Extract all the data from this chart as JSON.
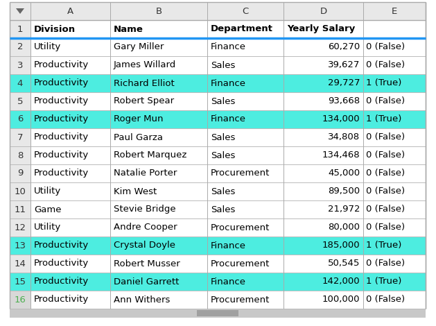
{
  "col_letters": [
    "",
    "A",
    "B",
    "C",
    "D",
    "E"
  ],
  "header_labels": [
    "Division",
    "Name",
    "Department",
    "Yearly Salary",
    ""
  ],
  "rows": [
    {
      "row_num": 1,
      "division": "Division",
      "name": "Name",
      "department": "Department",
      "salary": "Yearly Salary",
      "flag": "",
      "highlight": false,
      "is_header": true
    },
    {
      "row_num": 2,
      "division": "Utility",
      "name": "Gary Miller",
      "department": "Finance",
      "salary": "60,270",
      "flag": "0 (False)",
      "highlight": false,
      "is_header": false
    },
    {
      "row_num": 3,
      "division": "Productivity",
      "name": "James Willard",
      "department": "Sales",
      "salary": "39,627",
      "flag": "0 (False)",
      "highlight": false,
      "is_header": false
    },
    {
      "row_num": 4,
      "division": "Productivity",
      "name": "Richard Elliot",
      "department": "Finance",
      "salary": "29,727",
      "flag": "1 (True)",
      "highlight": true,
      "is_header": false
    },
    {
      "row_num": 5,
      "division": "Productivity",
      "name": "Robert Spear",
      "department": "Sales",
      "salary": "93,668",
      "flag": "0 (False)",
      "highlight": false,
      "is_header": false
    },
    {
      "row_num": 6,
      "division": "Productivity",
      "name": "Roger Mun",
      "department": "Finance",
      "salary": "134,000",
      "flag": "1 (True)",
      "highlight": true,
      "is_header": false
    },
    {
      "row_num": 7,
      "division": "Productivity",
      "name": "Paul Garza",
      "department": "Sales",
      "salary": "34,808",
      "flag": "0 (False)",
      "highlight": false,
      "is_header": false
    },
    {
      "row_num": 8,
      "division": "Productivity",
      "name": "Robert Marquez",
      "department": "Sales",
      "salary": "134,468",
      "flag": "0 (False)",
      "highlight": false,
      "is_header": false
    },
    {
      "row_num": 9,
      "division": "Productivity",
      "name": "Natalie Porter",
      "department": "Procurement",
      "salary": "45,000",
      "flag": "0 (False)",
      "highlight": false,
      "is_header": false
    },
    {
      "row_num": 10,
      "division": "Utility",
      "name": "Kim West",
      "department": "Sales",
      "salary": "89,500",
      "flag": "0 (False)",
      "highlight": false,
      "is_header": false
    },
    {
      "row_num": 11,
      "division": "Game",
      "name": "Stevie Bridge",
      "department": "Sales",
      "salary": "21,972",
      "flag": "0 (False)",
      "highlight": false,
      "is_header": false
    },
    {
      "row_num": 12,
      "division": "Utility",
      "name": "Andre Cooper",
      "department": "Procurement",
      "salary": "80,000",
      "flag": "0 (False)",
      "highlight": false,
      "is_header": false
    },
    {
      "row_num": 13,
      "division": "Productivity",
      "name": "Crystal Doyle",
      "department": "Finance",
      "salary": "185,000",
      "flag": "1 (True)",
      "highlight": true,
      "is_header": false
    },
    {
      "row_num": 14,
      "division": "Productivity",
      "name": "Robert Musser",
      "department": "Procurement",
      "salary": "50,545",
      "flag": "0 (False)",
      "highlight": false,
      "is_header": false
    },
    {
      "row_num": 15,
      "division": "Productivity",
      "name": "Daniel Garrett",
      "department": "Finance",
      "salary": "142,000",
      "flag": "1 (True)",
      "highlight": true,
      "is_header": false
    },
    {
      "row_num": 16,
      "division": "Productivity",
      "name": "Ann Withers",
      "department": "Procurement",
      "salary": "100,000",
      "flag": "0 (False)",
      "highlight": false,
      "is_header": false
    }
  ],
  "highlight_color": "#4DEDE0",
  "col_header_bg": "#E8E8E8",
  "row_num_bg": "#E8E8E8",
  "row_num_bg_last": "#D8D8D8",
  "white_bg": "#FFFFFF",
  "grid_color": "#BBBBBB",
  "header_border_color": "#2196F3",
  "col_header_border_color": "#AAAAAA",
  "font_size": 9.5,
  "header_font_size": 9.5,
  "col_letter_font_size": 9.5,
  "row_num_font_size": 9.5,
  "last_row_num_color": "#4CAF50",
  "scrollbar_color": "#C8C8C8",
  "scrollbar_thumb_color": "#A0A0A0"
}
